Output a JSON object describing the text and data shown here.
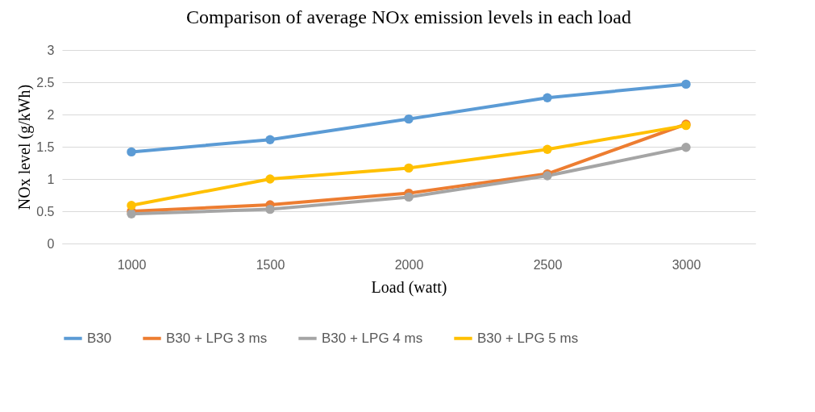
{
  "chart_data": {
    "type": "line",
    "title": "Comparison of average NOx emission levels in each load",
    "xlabel": "Load (watt)",
    "ylabel": "NOx level (g/kWh)",
    "categories": [
      "1000",
      "1500",
      "2000",
      "2500",
      "3000"
    ],
    "series": [
      {
        "name": "B30",
        "color": "#5b9bd5",
        "values": [
          1.42,
          1.61,
          1.93,
          2.26,
          2.47
        ]
      },
      {
        "name": "B30 + LPG 3 ms",
        "color": "#ed7d31",
        "values": [
          0.5,
          0.6,
          0.78,
          1.08,
          1.85
        ]
      },
      {
        "name": "B30 + LPG 4 ms",
        "color": "#a5a5a5",
        "values": [
          0.46,
          0.53,
          0.72,
          1.05,
          1.49
        ]
      },
      {
        "name": "B30 + LPG 5 ms",
        "color": "#ffc000",
        "values": [
          0.59,
          1.0,
          1.17,
          1.46,
          1.83
        ]
      }
    ],
    "ylim": [
      0,
      3
    ],
    "yticks": [
      0,
      0.5,
      1,
      1.5,
      2,
      2.5,
      3
    ],
    "grid": "y",
    "legend": "bottom",
    "marker": "circle",
    "line_style": "solid"
  }
}
